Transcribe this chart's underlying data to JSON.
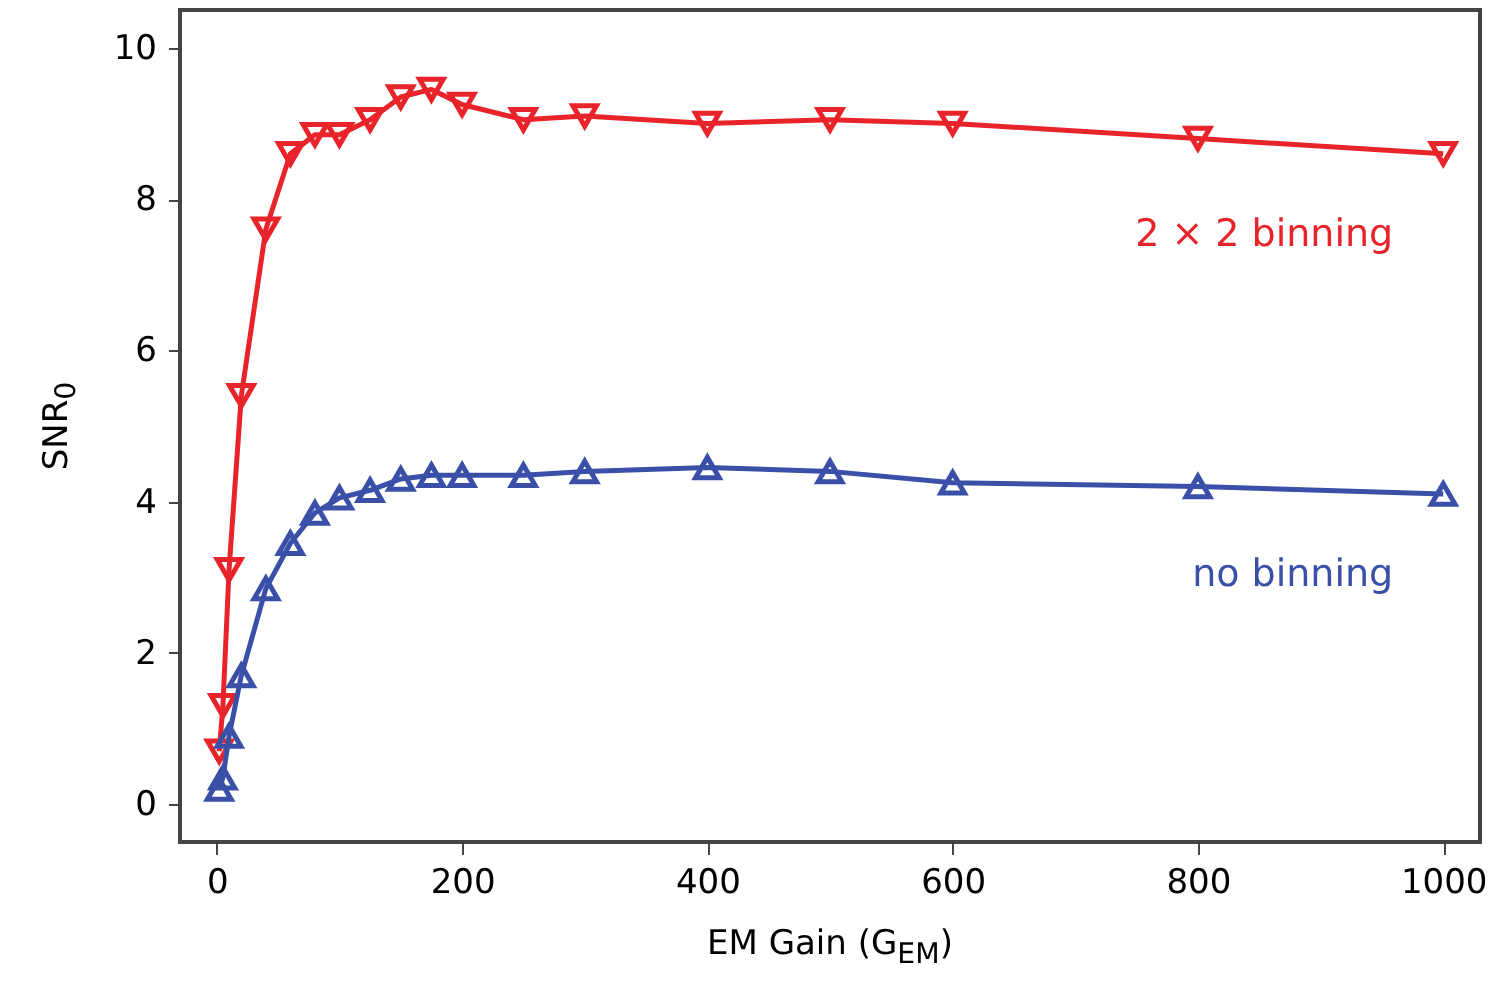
{
  "chart_data": {
    "type": "line",
    "xlabel": "EM Gain (G$_{EM}$)",
    "ylabel": "SNR$_{0}$",
    "xlim": [
      -30,
      1030
    ],
    "ylim": [
      -0.5,
      10.5
    ],
    "xticks": [
      0,
      200,
      400,
      600,
      800,
      1000
    ],
    "yticks": [
      0,
      2,
      4,
      6,
      8,
      10
    ],
    "grid": false,
    "line_style": "solid",
    "series": [
      {
        "name": "2 × 2 binning",
        "color": "#e8232a",
        "marker": "triangle-down",
        "x": [
          2,
          5,
          10,
          20,
          40,
          60,
          80,
          100,
          125,
          150,
          175,
          200,
          250,
          300,
          400,
          500,
          600,
          800,
          1000
        ],
        "values": [
          0.7,
          1.3,
          3.1,
          5.4,
          7.6,
          8.6,
          8.85,
          8.85,
          9.05,
          9.35,
          9.45,
          9.25,
          9.05,
          9.1,
          9.0,
          9.05,
          9.0,
          8.8,
          8.6
        ]
      },
      {
        "name": "no binning",
        "color": "#3a4fa8",
        "marker": "triangle",
        "x": [
          2,
          5,
          10,
          20,
          40,
          60,
          80,
          100,
          125,
          150,
          175,
          200,
          250,
          300,
          400,
          500,
          600,
          800,
          1000
        ],
        "values": [
          0.2,
          0.35,
          0.9,
          1.7,
          2.85,
          3.45,
          3.85,
          4.05,
          4.15,
          4.3,
          4.35,
          4.35,
          4.35,
          4.4,
          4.45,
          4.4,
          4.25,
          4.2,
          4.1
        ]
      }
    ]
  }
}
